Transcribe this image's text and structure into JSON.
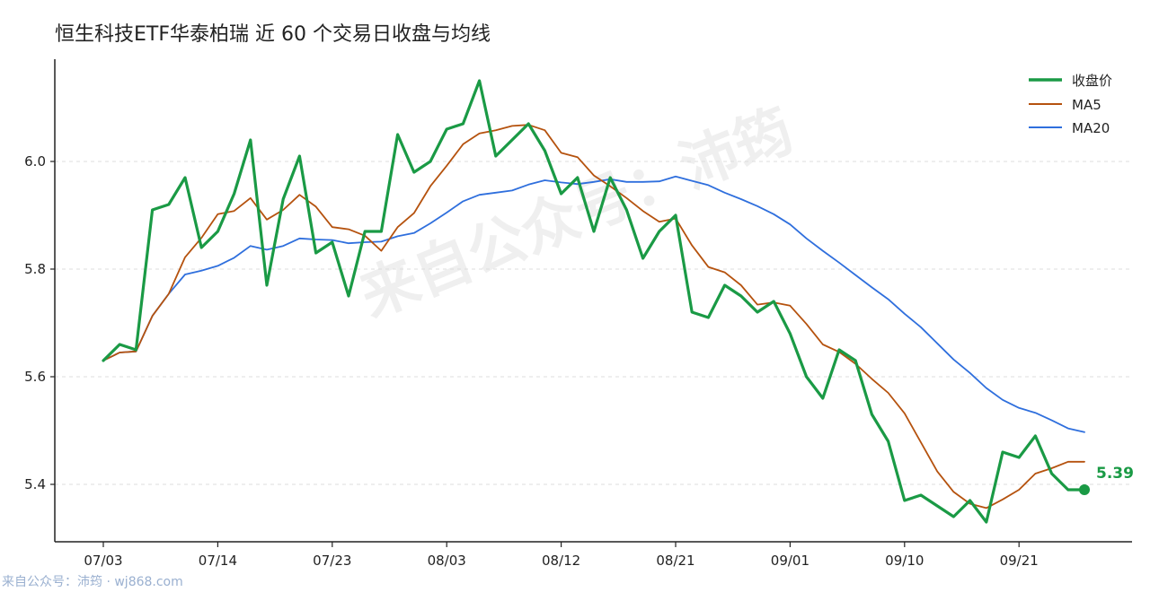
{
  "title": "恒生科技ETF华泰柏瑞 近 60 个交易日收盘与均线",
  "watermark": "来自公众号：沛筠",
  "footer": "来自公众号：沛筠 · wj868.com",
  "colors": {
    "close": "#1a9a45",
    "ma5": "#b5520e",
    "ma20": "#2f6fdd",
    "axis": "#222222",
    "grid": "#dddddd"
  },
  "chart_data": {
    "type": "line",
    "title": "恒生科技ETF华泰柏瑞 近 60 个交易日收盘与均线",
    "xlabel": "",
    "ylabel": "",
    "ylim": [
      5.31,
      6.2
    ],
    "yticks": [
      5.4,
      5.6,
      5.8,
      6.0
    ],
    "grid": "horizontal dashed",
    "legend_position": "top-right",
    "xtick_labels": [
      "07/03",
      "07/14",
      "07/23",
      "08/03",
      "08/12",
      "08/21",
      "09/01",
      "09/10",
      "09/21"
    ],
    "xtick_indices": [
      0,
      7,
      14,
      21,
      28,
      35,
      42,
      49,
      56
    ],
    "n_points": 61,
    "last_value_label": "5.39",
    "series": [
      {
        "name": "收盘价",
        "values": [
          5.63,
          5.66,
          5.65,
          5.91,
          5.92,
          5.97,
          5.84,
          5.87,
          5.94,
          6.04,
          5.77,
          5.93,
          6.01,
          5.83,
          5.85,
          5.75,
          5.87,
          5.87,
          6.05,
          5.98,
          6.0,
          6.06,
          6.07,
          6.15,
          6.01,
          6.04,
          6.07,
          6.02,
          5.94,
          5.97,
          5.87,
          5.97,
          5.91,
          5.82,
          5.87,
          5.9,
          5.72,
          5.71,
          5.77,
          5.75,
          5.72,
          5.74,
          5.68,
          5.6,
          5.56,
          5.65,
          5.63,
          5.53,
          5.48,
          5.37,
          5.38,
          5.36,
          5.34,
          5.37,
          5.33,
          5.46,
          5.45,
          5.49,
          5.42,
          5.39,
          5.39
        ]
      },
      {
        "name": "MA5",
        "values": [
          5.63,
          5.645,
          5.647,
          5.713,
          5.754,
          5.822,
          5.858,
          5.902,
          5.908,
          5.932,
          5.892,
          5.91,
          5.938,
          5.916,
          5.878,
          5.874,
          5.862,
          5.834,
          5.878,
          5.904,
          5.954,
          5.992,
          6.032,
          6.052,
          6.058,
          6.066,
          6.068,
          6.058,
          6.016,
          6.008,
          5.974,
          5.954,
          5.932,
          5.908,
          5.888,
          5.894,
          5.844,
          5.804,
          5.794,
          5.77,
          5.734,
          5.738,
          5.732,
          5.698,
          5.66,
          5.646,
          5.624,
          5.596,
          5.57,
          5.532,
          5.478,
          5.424,
          5.386,
          5.364,
          5.356,
          5.372,
          5.39,
          5.42,
          5.43,
          5.442,
          5.442
        ]
      },
      {
        "name": "MA20",
        "values": [
          5.63,
          5.645,
          5.647,
          5.713,
          5.754,
          5.79,
          5.797,
          5.806,
          5.821,
          5.843,
          5.836,
          5.843,
          5.857,
          5.855,
          5.854,
          5.848,
          5.85,
          5.851,
          5.861,
          5.867,
          5.885,
          5.905,
          5.926,
          5.938,
          5.942,
          5.946,
          5.957,
          5.965,
          5.961,
          5.958,
          5.962,
          5.967,
          5.962,
          5.962,
          5.963,
          5.972,
          5.964,
          5.956,
          5.942,
          5.93,
          5.917,
          5.902,
          5.883,
          5.857,
          5.834,
          5.812,
          5.789,
          5.766,
          5.744,
          5.717,
          5.692,
          5.662,
          5.632,
          5.607,
          5.579,
          5.557,
          5.542,
          5.533,
          5.519,
          5.504,
          5.497
        ]
      }
    ]
  }
}
